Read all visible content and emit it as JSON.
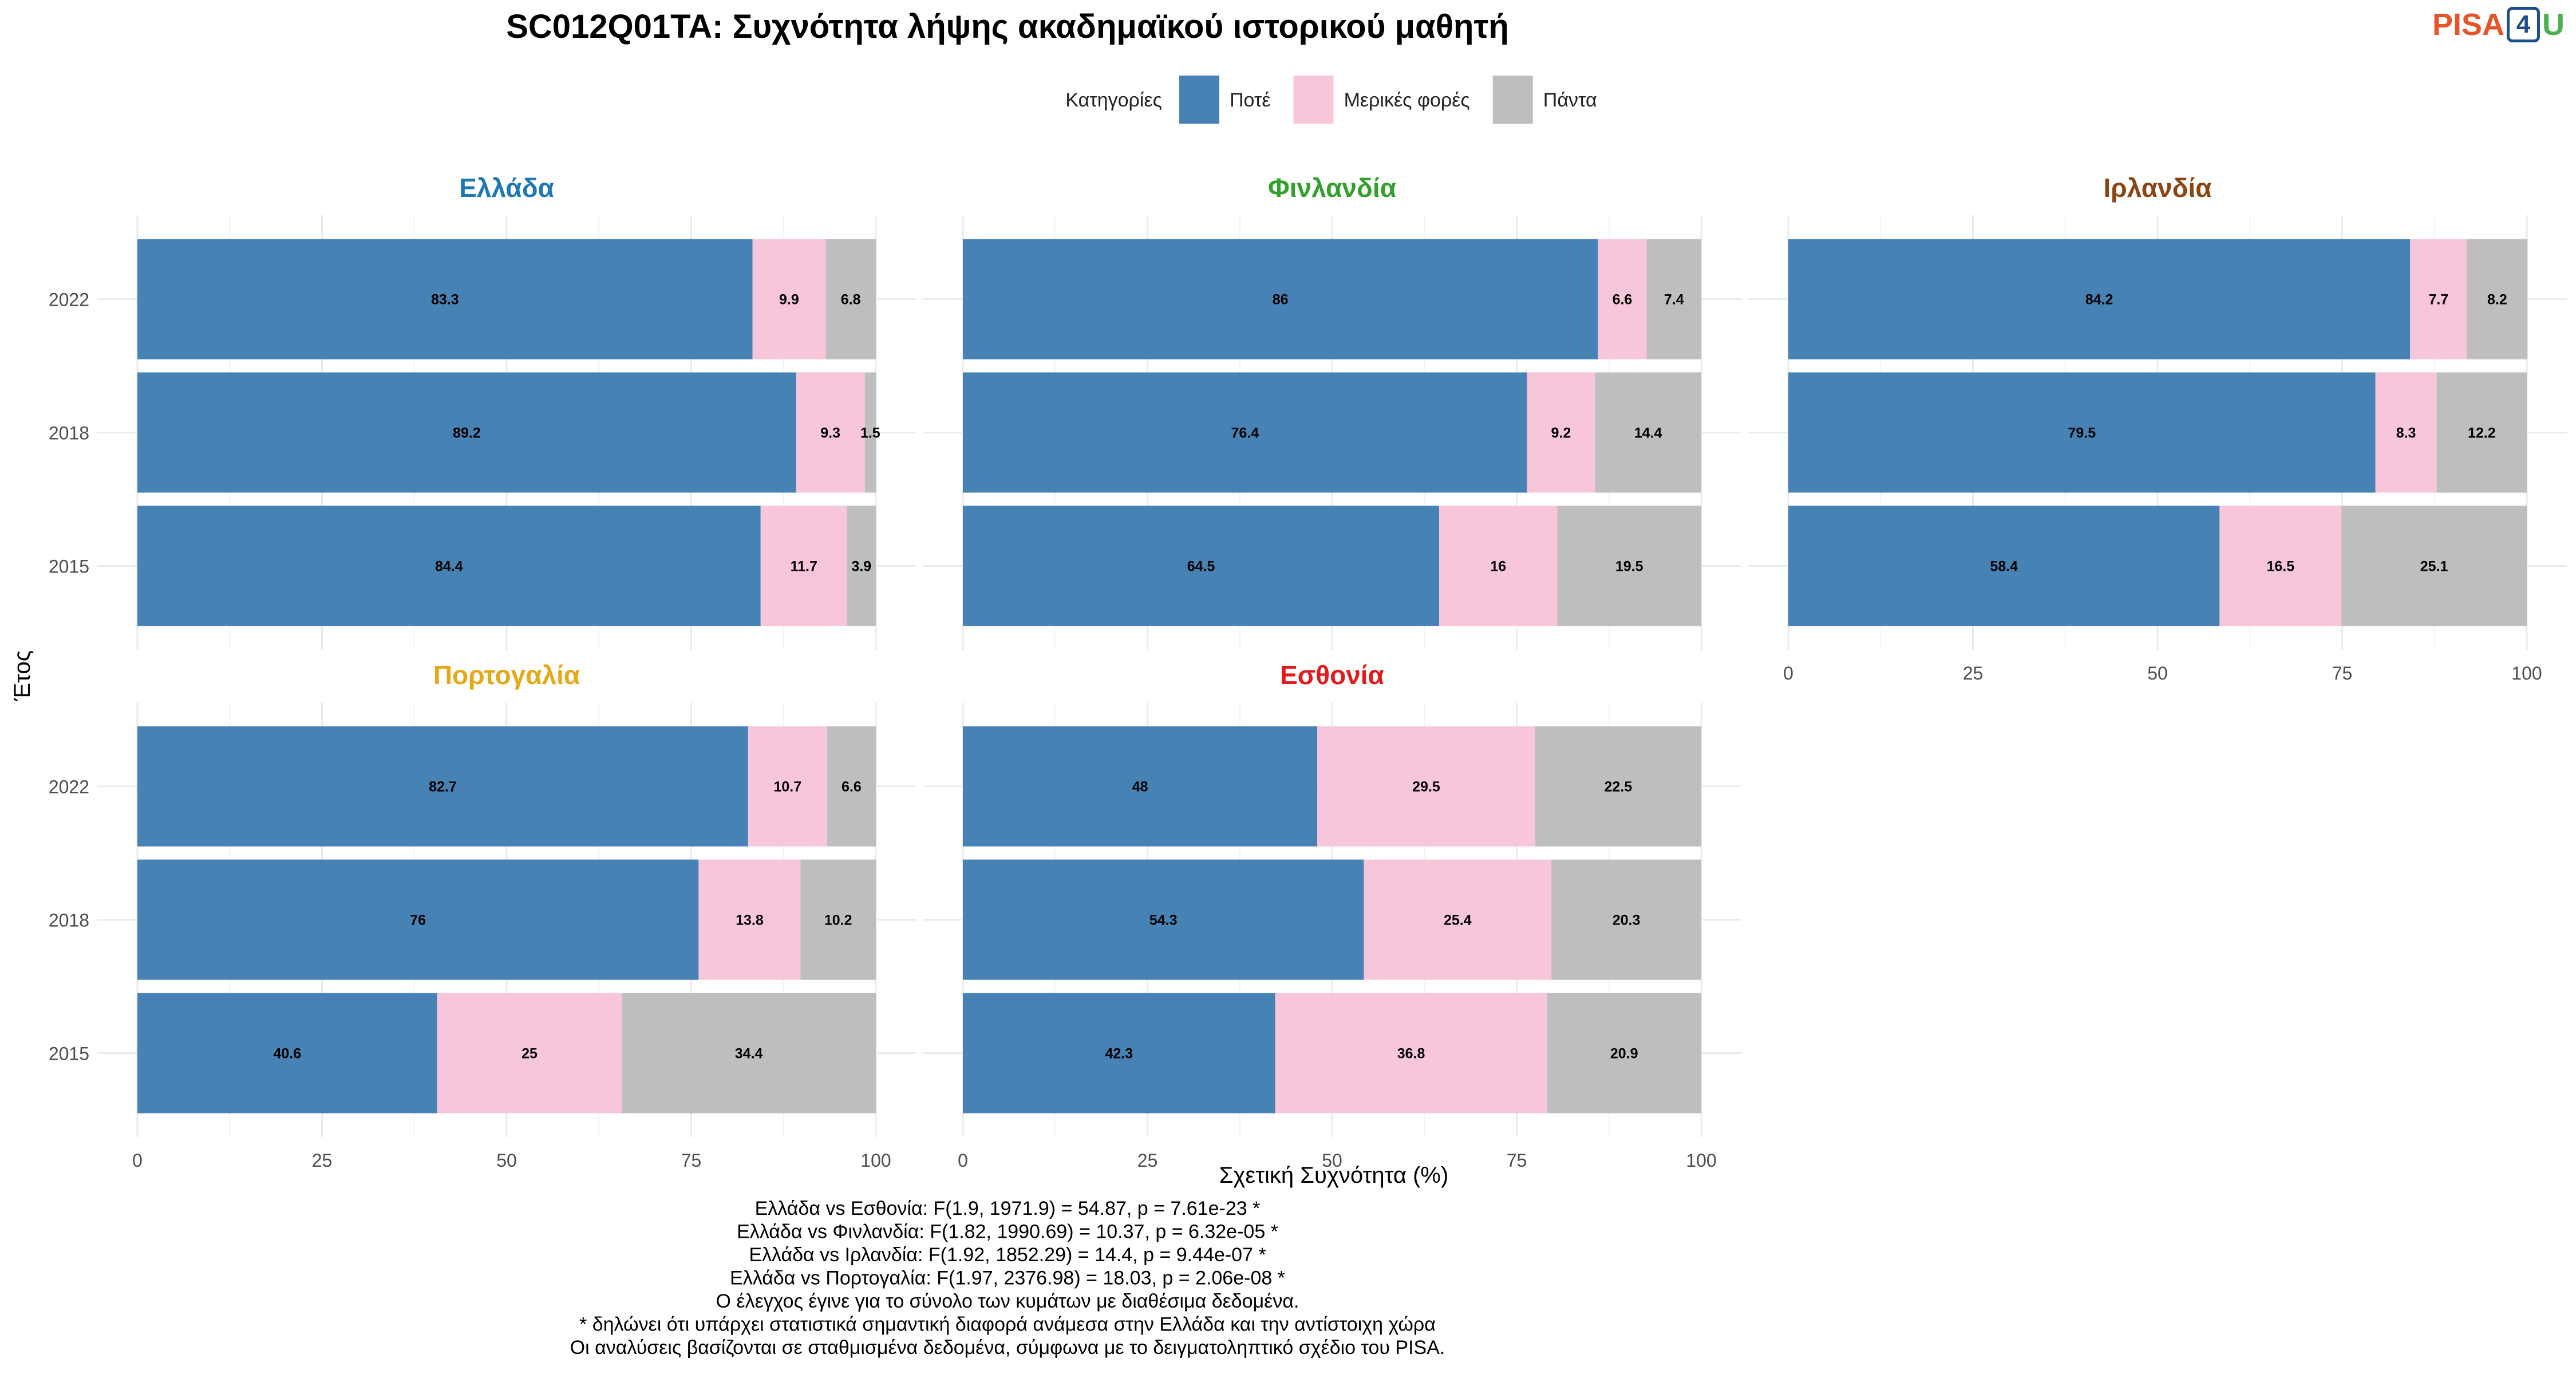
{
  "title": "SC012Q01TA: Συχνότητα λήψης ακαδημαϊκού ιστορικού μαθητή",
  "logo": {
    "part1": "PISA",
    "part2": "4",
    "part3": "U"
  },
  "legend": {
    "title": "Κατηγορίες",
    "items": [
      {
        "label": "Ποτέ",
        "color": "#4682B4"
      },
      {
        "label": "Μερικές φορές",
        "color": "#F7C6DA"
      },
      {
        "label": "Πάντα",
        "color": "#BEBEBE"
      }
    ]
  },
  "chart_data": {
    "type": "bar",
    "orientation": "horizontal-stacked",
    "xlabel": "Σχετική Συχνότητα (%)",
    "ylabel": "Έτος",
    "xlim": [
      0,
      100
    ],
    "xticks": [
      0,
      25,
      50,
      75,
      100
    ],
    "categories": [
      "2022",
      "2018",
      "2015"
    ],
    "series_names": [
      "Ποτέ",
      "Μερικές φορές",
      "Πάντα"
    ],
    "panels": [
      {
        "country": "Ελλάδα",
        "title_color": "#1F78B4",
        "values": {
          "2022": [
            83.3,
            9.9,
            6.8
          ],
          "2018": [
            89.2,
            9.3,
            1.5
          ],
          "2015": [
            84.4,
            11.7,
            3.9
          ]
        }
      },
      {
        "country": "Φινλανδία",
        "title_color": "#33A02C",
        "values": {
          "2022": [
            86,
            6.6,
            7.4
          ],
          "2018": [
            76.4,
            9.2,
            14.4
          ],
          "2015": [
            64.5,
            16,
            19.5
          ]
        }
      },
      {
        "country": "Ιρλανδία",
        "title_color": "#8B4513",
        "values": {
          "2022": [
            84.2,
            7.7,
            8.2
          ],
          "2018": [
            79.5,
            8.3,
            12.2
          ],
          "2015": [
            58.4,
            16.5,
            25.1
          ]
        }
      },
      {
        "country": "Πορτογαλία",
        "title_color": "#E6A817",
        "values": {
          "2022": [
            82.7,
            10.7,
            6.6
          ],
          "2018": [
            76,
            13.8,
            10.2
          ],
          "2015": [
            40.6,
            25,
            34.4
          ]
        }
      },
      {
        "country": "Εσθονία",
        "title_color": "#E31A1C",
        "values": {
          "2022": [
            48,
            29.5,
            22.5
          ],
          "2018": [
            54.3,
            25.4,
            20.3
          ],
          "2015": [
            42.3,
            36.8,
            20.9
          ]
        }
      }
    ]
  },
  "footnotes": [
    "Ελλάδα vs Εσθονία: F(1.9, 1971.9) = 54.87, p = 7.61e-23 *",
    "Ελλάδα vs Φινλανδία: F(1.82, 1990.69) = 10.37, p = 6.32e-05 *",
    "Ελλάδα vs Ιρλανδία: F(1.92, 1852.29) = 14.4, p = 9.44e-07 *",
    "Ελλάδα vs Πορτογαλία: F(1.97, 2376.98) = 18.03, p = 2.06e-08 *",
    "Ο έλεγχος έγινε για το σύνολο των κυμάτων με διαθέσιμα δεδομένα.",
    "* δηλώνει ότι υπάρχει στατιστικά σημαντική διαφορά ανάμεσα στην Ελλάδα και την αντίστοιχη χώρα",
    "Οι αναλύσεις βασίζονται σε σταθμισμένα δεδομένα, σύμφωνα με το δειγματοληπτικό σχέδιο του PISA."
  ]
}
